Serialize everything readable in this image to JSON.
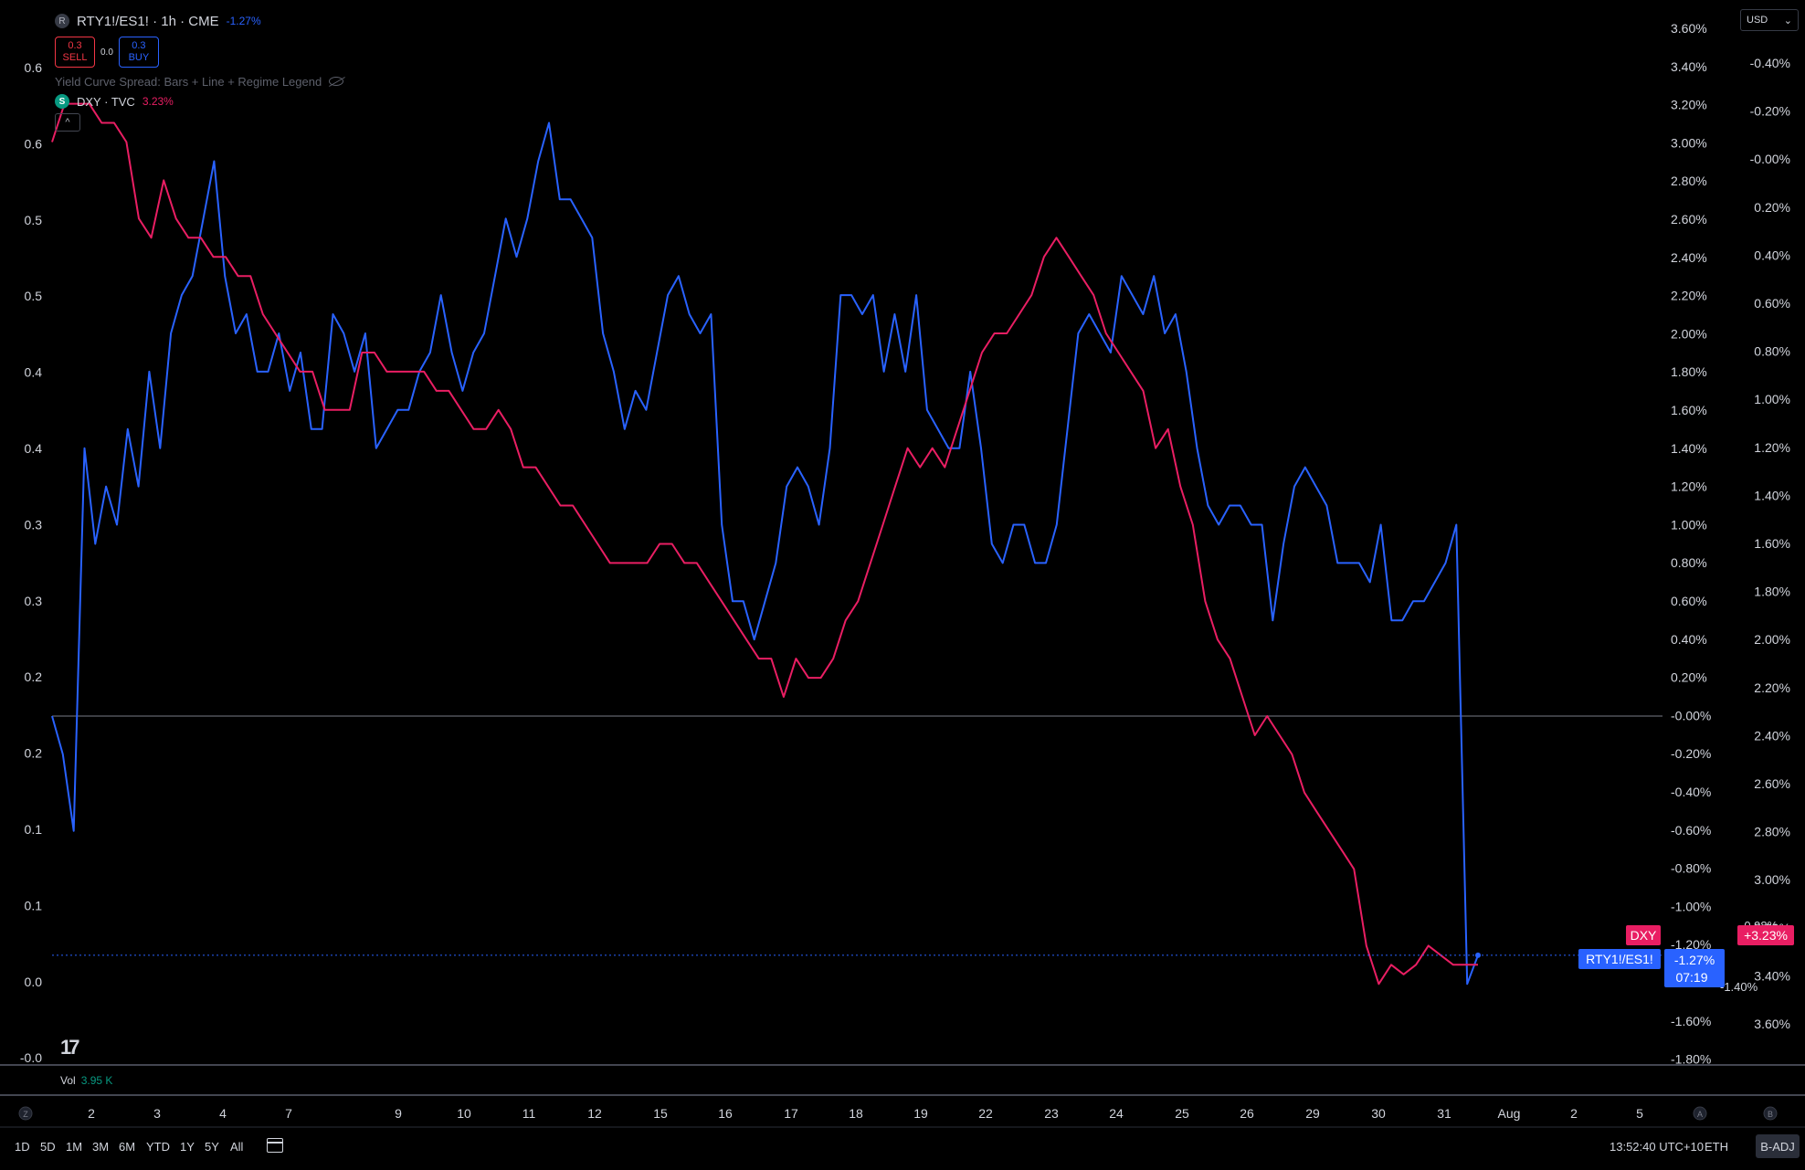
{
  "legend": {
    "symbol_icon": "R",
    "title": "RTY1!/ES1! · 1h · CME",
    "change": "-1.27%",
    "sell_price": "0.3",
    "sell_label": "SELL",
    "spread": "0.0",
    "buy_price": "0.3",
    "buy_label": "BUY",
    "indicator_name": "Yield Curve Spread: Bars + Line + Regime Legend",
    "compare_icon": "S",
    "compare_title": "DXY · TVC",
    "compare_change": "3.23%",
    "collapse_label": "^"
  },
  "currency": {
    "label": "USD"
  },
  "colors": {
    "ratio": "#2962ff",
    "dxy": "#e91e63",
    "bg": "#000000",
    "text": "#d1d4dc",
    "vol": "#089981"
  },
  "volume": {
    "label": "Vol",
    "value": "3.95 K"
  },
  "price_labels": {
    "dxy_tag": "DXY",
    "dxy_pct": "+3.23%",
    "ratio_tag": "RTY1!/ES1!",
    "ratio_pct": "-1.27%",
    "countdown": "07:19",
    "hidden_under_dxy": "-0.98%",
    "hidden_under_ratio": "-1.40%"
  },
  "toolbar": {
    "ranges": [
      "1D",
      "5D",
      "1M",
      "3M",
      "6M",
      "YTD",
      "1Y",
      "5Y",
      "All"
    ],
    "clock": "13:52:40 UTC+10",
    "session": "ETH",
    "adjust": "B-ADJ",
    "left_scale_btn": "Z",
    "auto_btn": "A",
    "log_btn": "B"
  },
  "chart_data": {
    "type": "line",
    "left_axis_ticks": [
      "0.6",
      "0.6",
      "0.5",
      "0.5",
      "0.4",
      "0.4",
      "0.3",
      "0.3",
      "0.2",
      "0.2",
      "0.1",
      "0.1",
      "0.0",
      "-0.0"
    ],
    "right_axis_ticks_inner": [
      "3.60%",
      "3.40%",
      "3.20%",
      "3.00%",
      "2.80%",
      "2.60%",
      "2.40%",
      "2.20%",
      "2.00%",
      "1.80%",
      "1.60%",
      "1.40%",
      "1.20%",
      "1.00%",
      "0.80%",
      "0.60%",
      "0.40%",
      "0.20%",
      "-0.00%",
      "-0.20%",
      "-0.40%",
      "-0.60%",
      "-0.80%",
      "-1.00%",
      "-1.20%",
      "-1.40%",
      "-1.60%",
      "-1.80%"
    ],
    "right_axis_ticks_outer": [
      "-0.40%",
      "-0.20%",
      "-0.00%",
      "0.20%",
      "0.40%",
      "0.60%",
      "0.80%",
      "1.00%",
      "1.20%",
      "1.40%",
      "1.60%",
      "1.80%",
      "2.00%",
      "2.20%",
      "2.40%",
      "2.60%",
      "2.80%",
      "3.00%",
      "3.20%",
      "3.40%",
      "3.60%"
    ],
    "x_ticks": [
      "2",
      "3",
      "4",
      "7",
      "9",
      "10",
      "11",
      "12",
      "15",
      "16",
      "17",
      "18",
      "19",
      "22",
      "23",
      "24",
      "25",
      "26",
      "29",
      "30",
      "31",
      "Aug",
      "2",
      "5"
    ],
    "series": [
      {
        "name": "RTY1!/ES1!",
        "unit": "%",
        "values": [
          0,
          -0.2,
          -0.6,
          1.4,
          0.9,
          1.2,
          1.0,
          1.5,
          1.2,
          1.8,
          1.4,
          2.0,
          2.2,
          2.3,
          2.6,
          2.9,
          2.3,
          2.0,
          2.1,
          1.8,
          1.8,
          2.0,
          1.7,
          1.9,
          1.5,
          1.5,
          2.1,
          2.0,
          1.8,
          2.0,
          1.4,
          1.5,
          1.6,
          1.6,
          1.8,
          1.9,
          2.2,
          1.9,
          1.7,
          1.9,
          2.0,
          2.3,
          2.6,
          2.4,
          2.6,
          2.9,
          3.1,
          2.7,
          2.7,
          2.6,
          2.5,
          2.0,
          1.8,
          1.5,
          1.7,
          1.6,
          1.9,
          2.2,
          2.3,
          2.1,
          2.0,
          2.1,
          1.0,
          0.6,
          0.6,
          0.4,
          0.6,
          0.8,
          1.2,
          1.3,
          1.2,
          1.0,
          1.4,
          2.2,
          2.2,
          2.1,
          2.2,
          1.8,
          2.1,
          1.8,
          2.2,
          1.6,
          1.5,
          1.4,
          1.4,
          1.8,
          1.4,
          0.9,
          0.8,
          1.0,
          1.0,
          0.8,
          0.8,
          1.0,
          1.5,
          2.0,
          2.1,
          2.0,
          1.9,
          2.3,
          2.2,
          2.1,
          2.3,
          2.0,
          2.1,
          1.8,
          1.4,
          1.1,
          1.0,
          1.1,
          1.1,
          1.0,
          1.0,
          0.5,
          0.9,
          1.2,
          1.3,
          1.2,
          1.1,
          0.8,
          0.8,
          0.8,
          0.7,
          1.0,
          0.5,
          0.5,
          0.6,
          0.6,
          0.7,
          0.8,
          1.0,
          -1.4,
          -1.25
        ]
      },
      {
        "name": "DXY",
        "unit": "%",
        "values": [
          3.0,
          3.2,
          3.2,
          3.2,
          3.1,
          3.1,
          3.0,
          2.6,
          2.5,
          2.8,
          2.6,
          2.5,
          2.5,
          2.4,
          2.4,
          2.3,
          2.3,
          2.1,
          2.0,
          1.9,
          1.8,
          1.8,
          1.6,
          1.6,
          1.6,
          1.9,
          1.9,
          1.8,
          1.8,
          1.8,
          1.8,
          1.7,
          1.7,
          1.6,
          1.5,
          1.5,
          1.6,
          1.5,
          1.3,
          1.3,
          1.2,
          1.1,
          1.1,
          1.0,
          0.9,
          0.8,
          0.8,
          0.8,
          0.8,
          0.9,
          0.9,
          0.8,
          0.8,
          0.7,
          0.6,
          0.5,
          0.4,
          0.3,
          0.3,
          0.1,
          0.3,
          0.2,
          0.2,
          0.3,
          0.5,
          0.6,
          0.8,
          1.0,
          1.2,
          1.4,
          1.3,
          1.4,
          1.3,
          1.5,
          1.7,
          1.9,
          2.0,
          2.0,
          2.1,
          2.2,
          2.4,
          2.5,
          2.4,
          2.3,
          2.2,
          2.0,
          1.9,
          1.8,
          1.7,
          1.4,
          1.5,
          1.2,
          1.0,
          0.6,
          0.4,
          0.3,
          0.1,
          -0.1,
          0.0,
          -0.1,
          -0.2,
          -0.4,
          -0.5,
          -0.6,
          -0.7,
          -0.8,
          -1.2,
          -1.4,
          -1.3,
          -1.35,
          -1.3,
          -1.2,
          -1.25,
          -1.3,
          -1.3,
          -1.3
        ]
      }
    ],
    "reference_line": 0,
    "grid": false,
    "legend_position": "top-left"
  }
}
